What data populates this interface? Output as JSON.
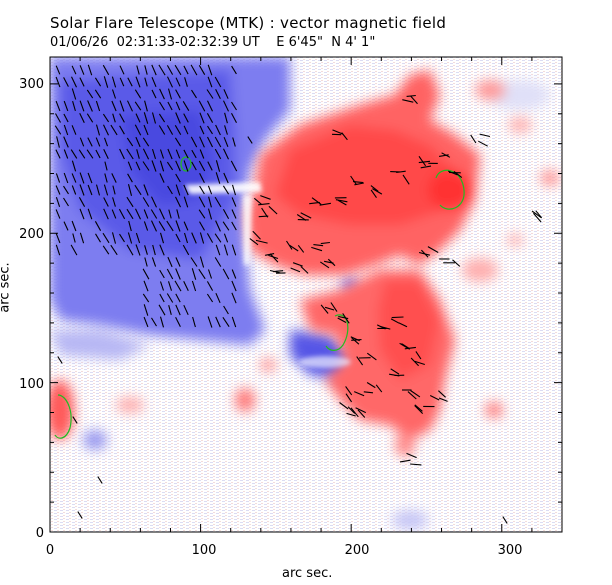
{
  "header": {
    "title": "Solar Flare Telescope (MTK) : vector magnetic field",
    "subtitle": "01/06/26  02:31:33-02:32:39 UT    E 6'45\"  N 4' 1\""
  },
  "axes": {
    "xlabel": "arc sec.",
    "ylabel": "arc sec.",
    "x_ticks": [
      "0",
      "100",
      "200",
      "300"
    ],
    "y_ticks": [
      "0",
      "100",
      "200",
      "300"
    ],
    "xlim": [
      0,
      340
    ],
    "ylim": [
      0,
      318
    ]
  },
  "colors": {
    "positive_polarity": "#ff6b6b",
    "negative_polarity": "#6d6df0",
    "neutral_line": "#22bb22",
    "vectors": "#000000"
  }
}
